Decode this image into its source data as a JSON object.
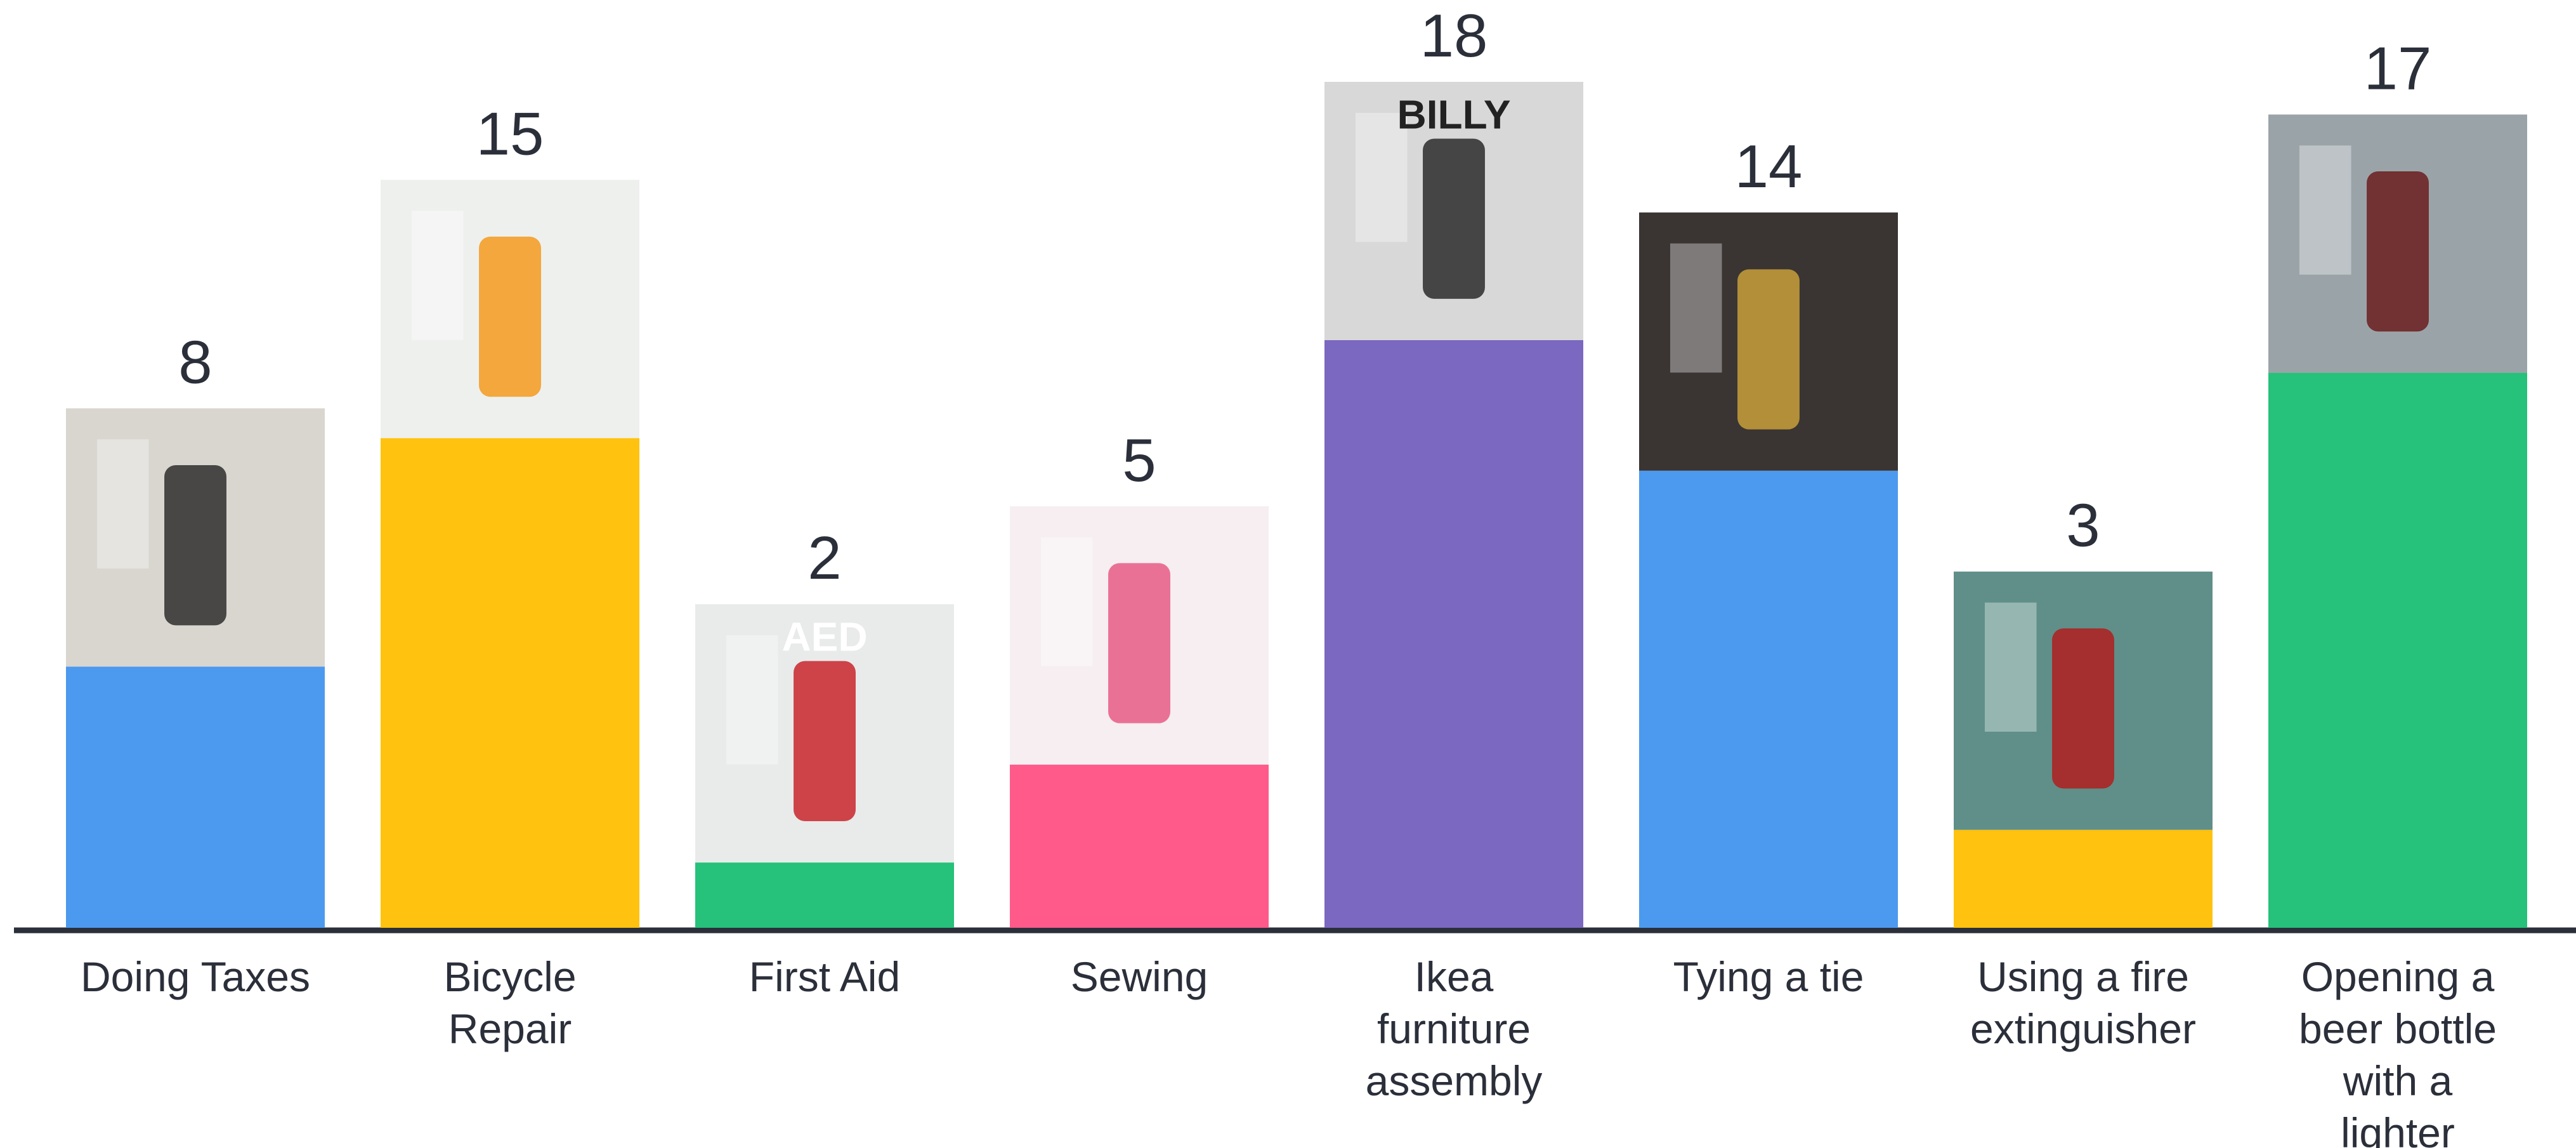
{
  "chart_data": {
    "type": "bar",
    "title": "",
    "xlabel": "",
    "ylabel": "",
    "ylim": [
      0,
      18
    ],
    "grid": false,
    "legend": "none",
    "categories": [
      "Doing Taxes",
      "Bicycle Repair",
      "First Aid",
      "Sewing",
      "Ikea furniture assembly",
      "Tying a tie",
      "Using a fire extinguisher",
      "Opening a beer bottle with a lighter"
    ],
    "category_lines": [
      [
        "Doing Taxes"
      ],
      [
        "Bicycle",
        "Repair"
      ],
      [
        "First Aid"
      ],
      [
        "Sewing"
      ],
      [
        "Ikea",
        "furniture",
        "assembly"
      ],
      [
        "Tying a tie"
      ],
      [
        "Using a fire",
        "extinguisher"
      ],
      [
        "Opening a",
        "beer bottle",
        "with a",
        "lighter"
      ]
    ],
    "values": [
      8,
      15,
      2,
      5,
      18,
      14,
      3,
      17
    ],
    "bar_colors": [
      "#4c9aef",
      "#ffc20e",
      "#26c17a",
      "#ff5a8a",
      "#7b68c0",
      "#4c9aef",
      "#ffc20e",
      "#26c17a"
    ],
    "pictures": [
      {
        "name": "tax-forms-calculator-photo",
        "bg": "#d9d6cf",
        "accent": "#2e2e2e",
        "text": ""
      },
      {
        "name": "man-repairing-bicycle-wheel-photo",
        "bg": "#eef0ee",
        "accent": "#f39a1d",
        "text": ""
      },
      {
        "name": "aed-cabinet-photo",
        "bg": "#e9eaea",
        "accent": "#c8262b",
        "text": "AED"
      },
      {
        "name": "pincushion-photo",
        "bg": "#f6eef1",
        "accent": "#e85a86",
        "text": ""
      },
      {
        "name": "billy-instructions-hardware-photo",
        "bg": "#d8d8d8",
        "accent": "#2b2b2b",
        "text": "BILLY"
      },
      {
        "name": "neckties-rack-photo",
        "bg": "#3a3433",
        "accent": "#c8a03a",
        "text": ""
      },
      {
        "name": "fire-extinguisher-on-wall-photo",
        "bg": "#5f8f88",
        "accent": "#b01e1e",
        "text": ""
      },
      {
        "name": "beer-bottles-city-photo",
        "bg": "#9aa4a8",
        "accent": "#6b1d1d",
        "text": ""
      }
    ],
    "axis_color": "#2b2f3a",
    "label_color": "#2b2f3a"
  }
}
